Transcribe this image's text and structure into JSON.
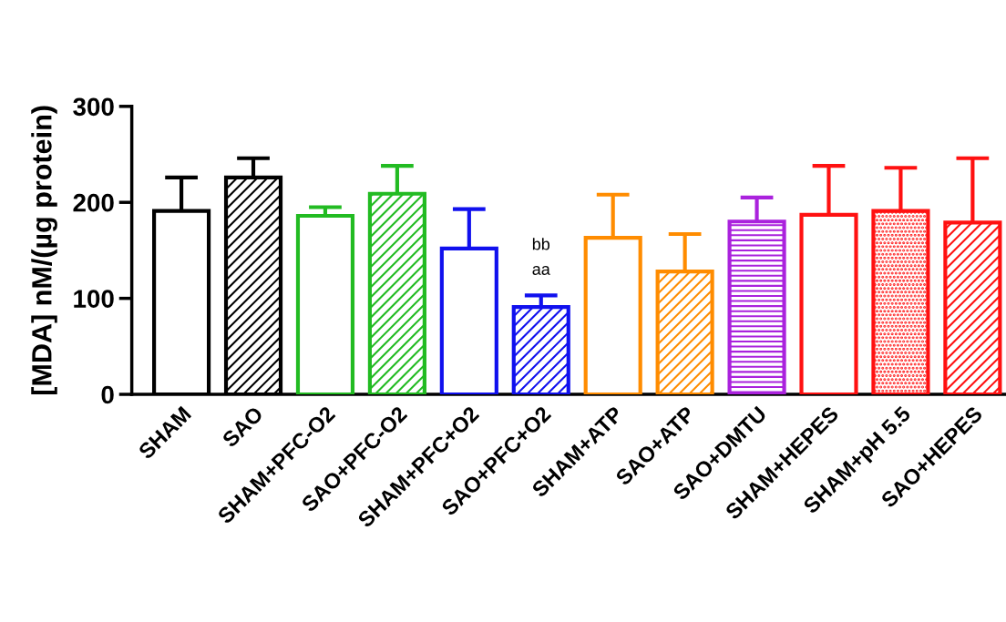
{
  "chart_data": {
    "type": "bar",
    "ylabel": "[MDA] nM/(µg protein)",
    "categories": [
      "SHAM",
      "SAO",
      "SHAM+PFC-O2",
      "SAO+PFC-O2",
      "SHAM+PFC+O2",
      "SAO+PFC+O2",
      "SHAM+ATP",
      "SAO+ATP",
      "SAO+DMTU",
      "SHAM+HEPES",
      "SHAM+pH 5.5",
      "SAO+HEPES"
    ],
    "values": [
      191,
      226,
      186,
      209,
      152,
      91,
      163,
      128,
      180,
      187,
      191,
      179
    ],
    "errors": [
      [
        191,
        226
      ],
      [
        226,
        246
      ],
      [
        186,
        195
      ],
      [
        209,
        238
      ],
      [
        152,
        193
      ],
      [
        91,
        103
      ],
      [
        163,
        208
      ],
      [
        128,
        167
      ],
      [
        180,
        205
      ],
      [
        187,
        238
      ],
      [
        191,
        236
      ],
      [
        179,
        246
      ]
    ],
    "colors": [
      "#000000",
      "#000000",
      "#22bb22",
      "#22bb22",
      "#1010ee",
      "#1010ee",
      "#ff8c00",
      "#ff8c00",
      "#aa22dd",
      "#ff1111",
      "#ff1111",
      "#ff1111"
    ],
    "ylim": [
      0,
      300
    ],
    "yticks": [
      0,
      100,
      200,
      300
    ],
    "grid": false,
    "annotations": [
      "bb",
      "aa"
    ]
  }
}
